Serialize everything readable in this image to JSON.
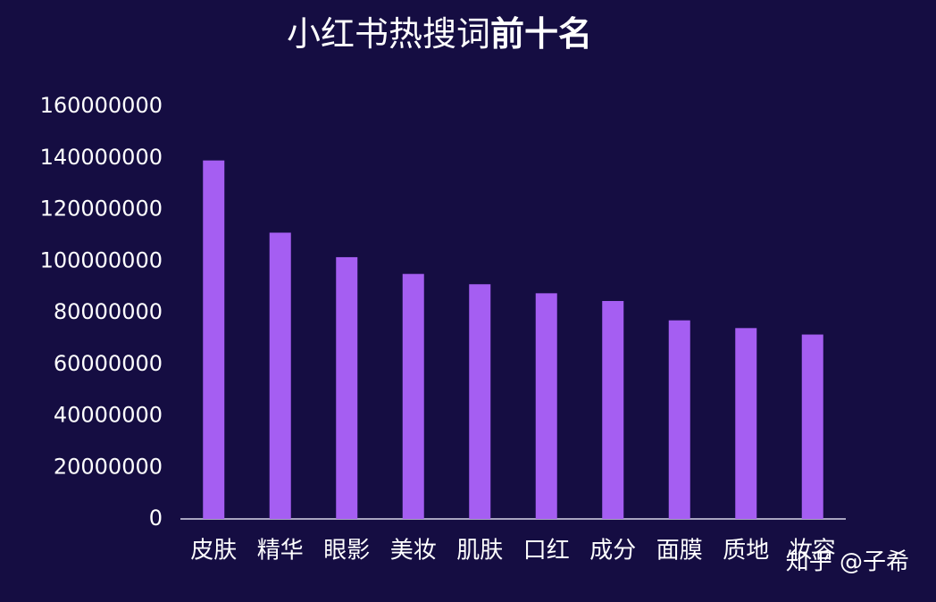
{
  "chart_data": {
    "type": "bar",
    "title_parts": [
      "小红书热搜词",
      "前十名"
    ],
    "categories": [
      "皮肤",
      "精华",
      "眼影",
      "美妆",
      "肌肤",
      "口红",
      "成分",
      "面膜",
      "质地",
      "妆容"
    ],
    "values": [
      139000000,
      111000000,
      101500000,
      95000000,
      91000000,
      87500000,
      84500000,
      77000000,
      74000000,
      71500000
    ],
    "color": "#a55ef2",
    "ylim": [
      0,
      160000000
    ],
    "yticks": [
      0,
      20000000,
      40000000,
      60000000,
      80000000,
      100000000,
      120000000,
      140000000,
      160000000
    ],
    "grid": false
  },
  "watermark": "知乎 @子希"
}
